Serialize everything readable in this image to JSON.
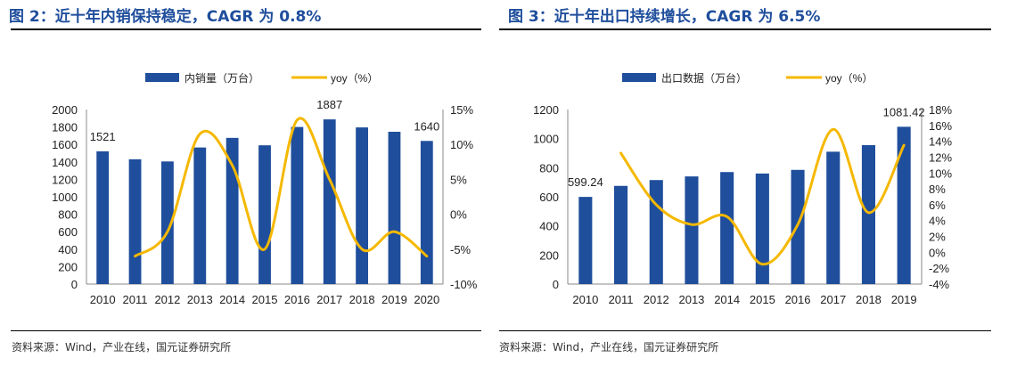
{
  "figures": [
    {
      "title": "图 2：近十年内销保持稳定，CAGR 为 0.8%",
      "source": "资料来源：Wind，产业在线，国元证券研究所",
      "chart_data": {
        "type": "bar",
        "categories": [
          "2010",
          "2011",
          "2012",
          "2013",
          "2014",
          "2015",
          "2016",
          "2017",
          "2018",
          "2019",
          "2020"
        ],
        "series": [
          {
            "name": "内销量（万台）",
            "kind": "bar",
            "axis": "left",
            "color": "#1f4e9c",
            "values": [
              1521,
              1430,
              1405,
              1565,
              1675,
              1590,
              1800,
              1887,
              1795,
              1745,
              1640
            ]
          },
          {
            "name": "yoy（%）",
            "kind": "line",
            "axis": "right",
            "color": "#f5b800",
            "values": [
              null,
              -6.0,
              -2.5,
              11.5,
              7.0,
              -5.0,
              13.5,
              5.0,
              -5.0,
              -2.5,
              -6.0
            ]
          }
        ],
        "data_labels": [
          {
            "index": 0,
            "text": "1521"
          },
          {
            "index": 7,
            "text": "1887"
          },
          {
            "index": 10,
            "text": "1640"
          }
        ],
        "left_axis": {
          "min": 0,
          "max": 2000,
          "step": 200,
          "ticks": [
            "0",
            "200",
            "400",
            "600",
            "800",
            "1000",
            "1200",
            "1400",
            "1600",
            "1800",
            "2000"
          ]
        },
        "right_axis": {
          "min": -10,
          "max": 15,
          "step": 5,
          "ticks": [
            "-10%",
            "-5%",
            "0%",
            "5%",
            "10%",
            "15%"
          ]
        },
        "legend_position": "top-center",
        "grid": false
      }
    },
    {
      "title": "图 3：近十年出口持续增长，CAGR 为 6.5%",
      "source": "资料来源：Wind，产业在线，国元证券研究所",
      "chart_data": {
        "type": "bar",
        "categories": [
          "2010",
          "2011",
          "2012",
          "2013",
          "2014",
          "2015",
          "2016",
          "2017",
          "2018",
          "2019"
        ],
        "series": [
          {
            "name": "出口数据（万台）",
            "kind": "bar",
            "axis": "left",
            "color": "#1f4e9c",
            "values": [
              599.24,
              675,
              715,
              740,
              770,
              760,
              785,
              910,
              955,
              1081.42
            ]
          },
          {
            "name": "yoy（%）",
            "kind": "line",
            "axis": "right",
            "color": "#f5b800",
            "values": [
              null,
              12.5,
              6.0,
              3.5,
              4.5,
              -1.5,
              3.5,
              15.5,
              5.0,
              13.5
            ]
          }
        ],
        "data_labels": [
          {
            "index": 0,
            "text": "599.24"
          },
          {
            "index": 9,
            "text": "1081.42"
          }
        ],
        "left_axis": {
          "min": 0,
          "max": 1200,
          "step": 200,
          "ticks": [
            "0",
            "200",
            "400",
            "600",
            "800",
            "1000",
            "1200"
          ]
        },
        "right_axis": {
          "min": -4,
          "max": 18,
          "step": 2,
          "ticks": [
            "-4%",
            "-2%",
            "0%",
            "2%",
            "4%",
            "6%",
            "8%",
            "10%",
            "12%",
            "14%",
            "16%",
            "18%"
          ]
        },
        "legend_position": "top-center",
        "grid": false
      }
    }
  ]
}
